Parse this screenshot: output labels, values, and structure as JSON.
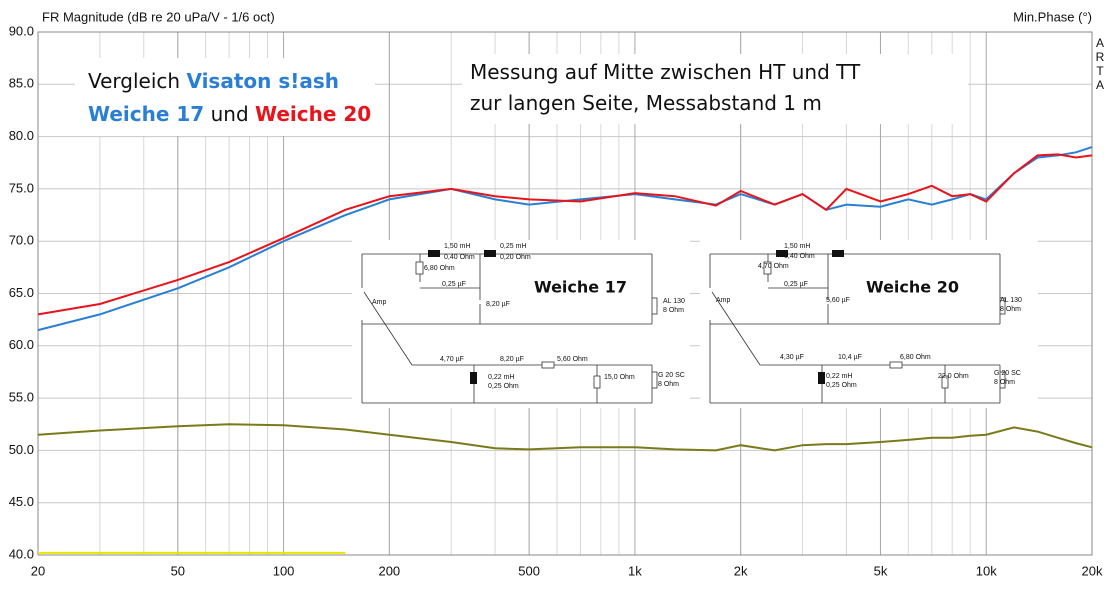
{
  "chart_data": {
    "type": "line",
    "title": "FR Magnitude (dB re 20 uPa/V - 1/6 oct)",
    "y2_label": "Min.Phase (°)",
    "watermark": "ARTA",
    "log_x": true,
    "grid": true,
    "x": [
      20,
      30,
      50,
      70,
      100,
      150,
      200,
      300,
      400,
      500,
      700,
      1000,
      1300,
      1700,
      2000,
      2500,
      3000,
      3500,
      4000,
      5000,
      6000,
      7000,
      8000,
      9000,
      10000,
      12000,
      14000,
      16000,
      18000,
      20000
    ],
    "xlim": [
      20,
      20000
    ],
    "xticks": [
      20,
      50,
      100,
      200,
      500,
      {
        "value": 1000,
        "label": "1k"
      },
      {
        "value": 2000,
        "label": "2k"
      },
      {
        "value": 5000,
        "label": "5k"
      },
      {
        "value": 10000,
        "label": "10k"
      },
      {
        "value": 20000,
        "label": "20k"
      }
    ],
    "ylim": [
      40,
      90
    ],
    "yticks": [
      {
        "value": 40,
        "label": "40.0"
      },
      {
        "value": 45,
        "label": "45.0"
      },
      {
        "value": 50,
        "label": "50.0"
      },
      {
        "value": 55,
        "label": "55.0"
      },
      {
        "value": 60,
        "label": "60.0"
      },
      {
        "value": 65,
        "label": "65.0"
      },
      {
        "value": 70,
        "label": "70.0"
      },
      {
        "value": 75,
        "label": "75.0"
      },
      {
        "value": 80,
        "label": "80.0"
      },
      {
        "value": 85,
        "label": "85.0"
      },
      {
        "value": 90,
        "label": "90.0"
      }
    ],
    "series": [
      {
        "color": "#7a7a1a",
        "values": [
          51.5,
          51.9,
          52.3,
          52.5,
          52.4,
          52.0,
          51.5,
          50.8,
          50.2,
          50.1,
          50.3,
          50.3,
          50.1,
          50.0,
          50.5,
          50.0,
          50.5,
          50.6,
          50.6,
          50.8,
          51.0,
          51.2,
          51.2,
          51.4,
          51.5,
          52.2,
          51.8,
          51.2,
          50.7,
          50.3
        ]
      },
      {
        "color": "#e6e600",
        "values": [
          40.2,
          40.2,
          40.2,
          40.2,
          40.2,
          40.2,
          null,
          null,
          null,
          null,
          null,
          null,
          null,
          null,
          null,
          null,
          null,
          null,
          null,
          null,
          null,
          null,
          null,
          null,
          null,
          null,
          null,
          null,
          null,
          null
        ]
      },
      {
        "color": "#2a7fd4",
        "values": [
          61.5,
          63,
          65.5,
          67.5,
          70,
          72.5,
          74,
          75,
          74,
          73.5,
          74,
          74.5,
          74,
          73.5,
          74.5,
          73.5,
          74.5,
          73,
          73.5,
          73.3,
          74,
          73.5,
          74,
          74.5,
          74,
          76.5,
          78,
          78.2,
          78.5,
          79
        ]
      },
      {
        "color": "#e8141c",
        "values": [
          63,
          64,
          66.3,
          68,
          70.3,
          73,
          74.3,
          75,
          74.3,
          74,
          73.8,
          74.6,
          74.3,
          73.4,
          74.8,
          73.5,
          74.5,
          73,
          75,
          73.8,
          74.5,
          75.3,
          74.3,
          74.5,
          73.8,
          76.5,
          78.2,
          78.3,
          78,
          78.2
        ]
      }
    ],
    "annotations": [
      {
        "lines": [
          [
            {
              "text": "Vergleich ",
              "color": "#111111"
            },
            {
              "text": "Visaton s!ash",
              "color": "#2a7fd4"
            }
          ],
          [
            {
              "text": "Weiche 17",
              "color": "#2a7fd4"
            },
            {
              "text": " und ",
              "color": "#111111"
            },
            {
              "text": "Weiche 20",
              "color": "#e8141c"
            }
          ]
        ]
      },
      {
        "lines": [
          [
            {
              "text": "Messung auf Mitte zwischen HT und TT",
              "color": "#111111"
            }
          ],
          [
            {
              "text": "zur langen Seite, Messabstand 1 m",
              "color": "#111111"
            }
          ]
        ]
      }
    ],
    "schematics": [
      {
        "title": "Weiche 17",
        "color": "#2a7fd4",
        "labels": [
          "1,50 mH",
          "0,40 Ohm",
          "0,25 mH",
          "0,20 Ohm",
          "6,80 Ohm",
          "0,25 µF",
          "8,20 µF",
          "AL 130",
          "8 Ohm",
          "Amp",
          "4,70 µF",
          "8,20 µF",
          "5,60 Ohm",
          "0,22 mH",
          "0,25 Ohm",
          "15,0 Ohm",
          "G 20 SC",
          "8 Ohm"
        ]
      },
      {
        "title": "Weiche 20",
        "color": "#e8141c",
        "labels": [
          "1,50 mH",
          "0,40 Ohm",
          "4,70 Ohm",
          "0,25 µF",
          "5,60 µF",
          "AL 130",
          "8 Ohm",
          "Amp",
          "4,30 µF",
          "10,4 µF",
          "6,80 Ohm",
          "0,22 mH",
          "0,25 Ohm",
          "22,0 Ohm",
          "G 20 SC",
          "8 Ohm"
        ]
      }
    ]
  }
}
